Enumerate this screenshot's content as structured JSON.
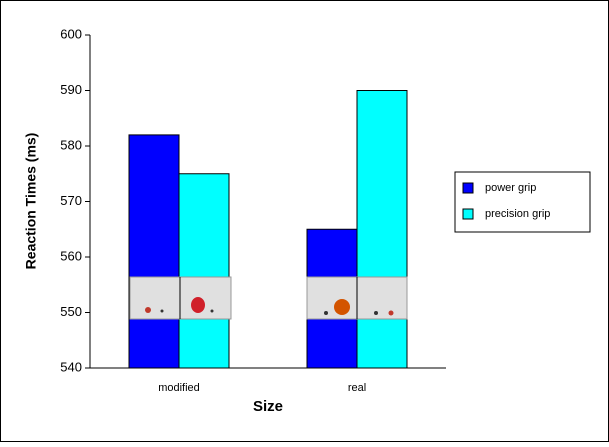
{
  "chart_data": {
    "type": "bar",
    "y_label": "Reaction Times (ms)",
    "x_label": "Size",
    "categories": [
      "modified",
      "real"
    ],
    "series": [
      {
        "name": "power grip",
        "color": "#0000ff",
        "values": [
          582,
          565
        ]
      },
      {
        "name": "precision grip",
        "color": "#00ffff",
        "values": [
          575,
          590
        ]
      }
    ],
    "ylim": [
      540,
      600
    ],
    "yticks": [
      540,
      550,
      560,
      570,
      580,
      590,
      600
    ],
    "grid": false,
    "legend": "right"
  }
}
